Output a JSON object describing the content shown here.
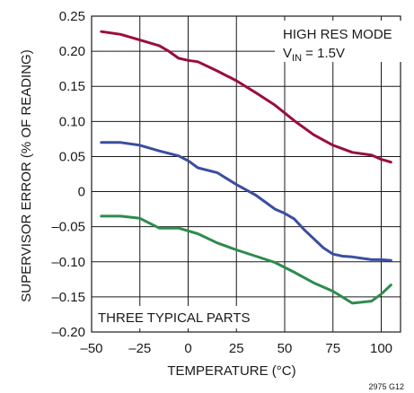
{
  "chart_data": {
    "type": "line",
    "title": "",
    "xlabel": "TEMPERATURE (°C)",
    "ylabel": "SUPERVISOR ERROR (% OF READING)",
    "xlim": [
      -50,
      110
    ],
    "ylim": [
      -0.2,
      0.25
    ],
    "x_ticks": [
      -50,
      -25,
      0,
      25,
      50,
      75,
      100
    ],
    "x_tick_labels": [
      "–50",
      "–25",
      "0",
      "25",
      "50",
      "75",
      "100"
    ],
    "y_ticks": [
      0.25,
      0.2,
      0.15,
      0.1,
      0.05,
      0,
      -0.05,
      -0.1,
      -0.15,
      -0.2
    ],
    "y_tick_labels": [
      "0.25",
      "0.20",
      "0.15",
      "0.10",
      "0.05",
      "0",
      "–0.05",
      "–0.10",
      "–0.15",
      "–0.20"
    ],
    "grid": true,
    "annotations": {
      "mode": "HIGH RES MODE",
      "vin_main": "V",
      "vin_sub": "IN",
      "vin_value": " = 1.5V",
      "parts": "THREE TYPICAL PARTS",
      "figure_id": "2975 G12"
    },
    "series": [
      {
        "color": "#9b0d3c",
        "x": [
          -45,
          -35,
          -25,
          -15,
          -10,
          -5,
          0,
          5,
          15,
          25,
          35,
          45,
          55,
          65,
          75,
          85,
          95,
          100,
          105
        ],
        "y": [
          0.228,
          0.224,
          0.216,
          0.208,
          0.2,
          0.19,
          0.187,
          0.185,
          0.172,
          0.158,
          0.141,
          0.123,
          0.101,
          0.081,
          0.066,
          0.056,
          0.052,
          0.046,
          0.042
        ]
      },
      {
        "color": "#3a4ea0",
        "x": [
          -45,
          -35,
          -25,
          -15,
          -5,
          0,
          5,
          15,
          25,
          35,
          45,
          50,
          55,
          60,
          70,
          75,
          80,
          85,
          90,
          95,
          100,
          105
        ],
        "y": [
          0.07,
          0.07,
          0.066,
          0.058,
          0.051,
          0.044,
          0.034,
          0.027,
          0.01,
          -0.005,
          -0.025,
          -0.031,
          -0.039,
          -0.054,
          -0.08,
          -0.089,
          -0.092,
          -0.093,
          -0.095,
          -0.097,
          -0.097,
          -0.098
        ]
      },
      {
        "color": "#2e8b4e",
        "x": [
          -45,
          -35,
          -25,
          -15,
          -5,
          5,
          15,
          25,
          35,
          45,
          55,
          65,
          75,
          85,
          95,
          100,
          105
        ],
        "y": [
          -0.035,
          -0.035,
          -0.038,
          -0.052,
          -0.052,
          -0.06,
          -0.073,
          -0.083,
          -0.092,
          -0.101,
          -0.115,
          -0.13,
          -0.142,
          -0.159,
          -0.156,
          -0.146,
          -0.133
        ]
      }
    ]
  }
}
